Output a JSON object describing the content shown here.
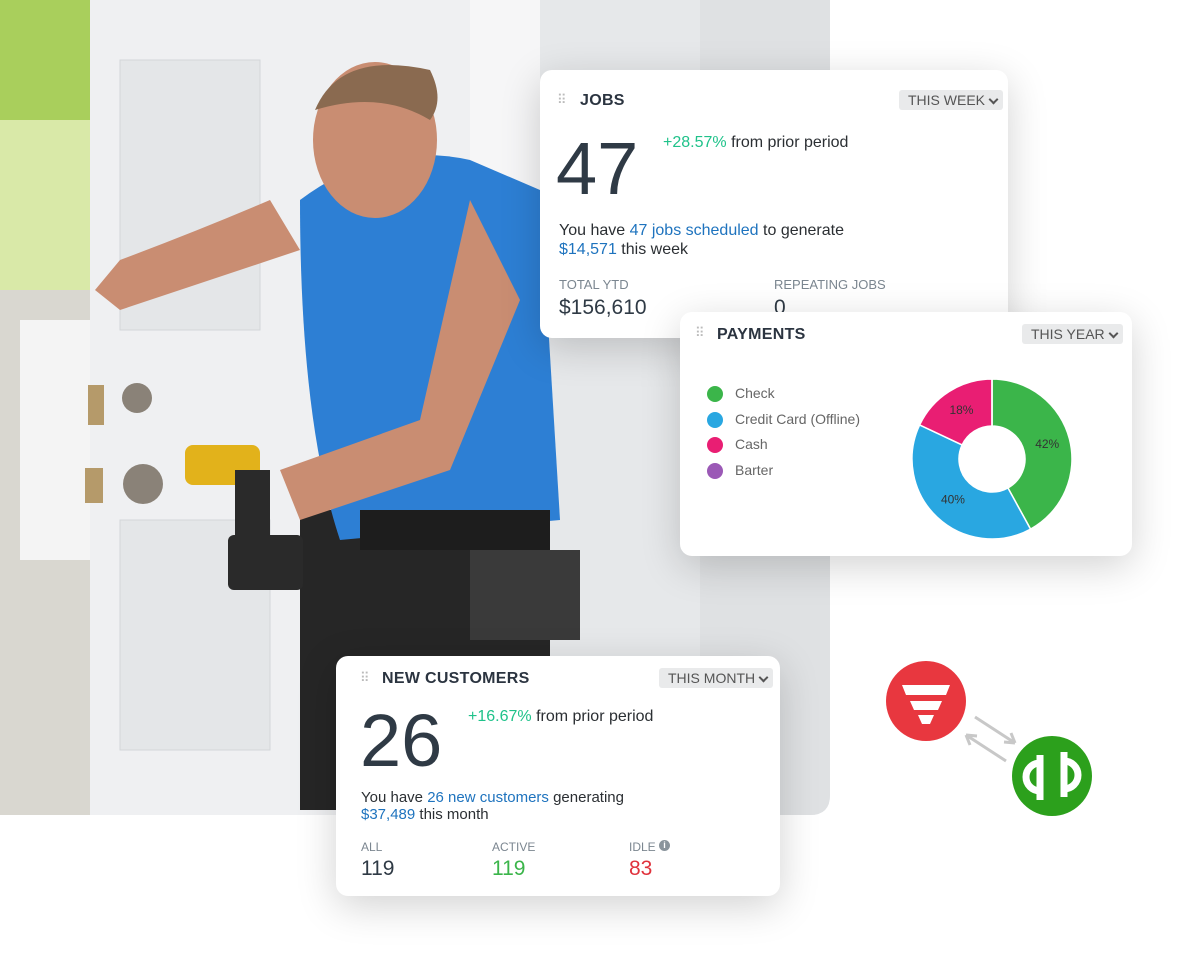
{
  "jobs": {
    "title": "JOBS",
    "period": "THIS WEEK",
    "count": "47",
    "change": "+28.57%",
    "change_text": "from prior period",
    "summary": [
      "You have",
      "47 jobs scheduled",
      "to generate",
      "$14,571",
      "this week"
    ],
    "stats": [
      {
        "label": "TOTAL YTD",
        "value": "$156,610"
      },
      {
        "label": "REPEATING JOBS",
        "value": "0"
      }
    ]
  },
  "chart_data": {
    "type": "pie",
    "title": "PAYMENTS",
    "period": "THIS YEAR",
    "categories": [
      "Check",
      "Credit Card (Offline)",
      "Cash",
      "Barter"
    ],
    "values": [
      42,
      40,
      18,
      0
    ],
    "value_labels": [
      "42%",
      "40%",
      "18%",
      null
    ],
    "colors": [
      "#3bb54a",
      "#29a7e1",
      "#e91e73",
      "#9b59b6"
    ]
  },
  "customers": {
    "title": "NEW CUSTOMERS",
    "period": "THIS MONTH",
    "count": "26",
    "change": "+16.67%",
    "change_text": "from prior period",
    "summary": [
      "You have",
      "26 new customers",
      "generating",
      "$37,489",
      "this month"
    ],
    "stats": [
      {
        "label": "ALL",
        "value": "119"
      },
      {
        "label": "ACTIVE",
        "value": "119"
      },
      {
        "label": "IDLE",
        "value": "83"
      }
    ]
  }
}
